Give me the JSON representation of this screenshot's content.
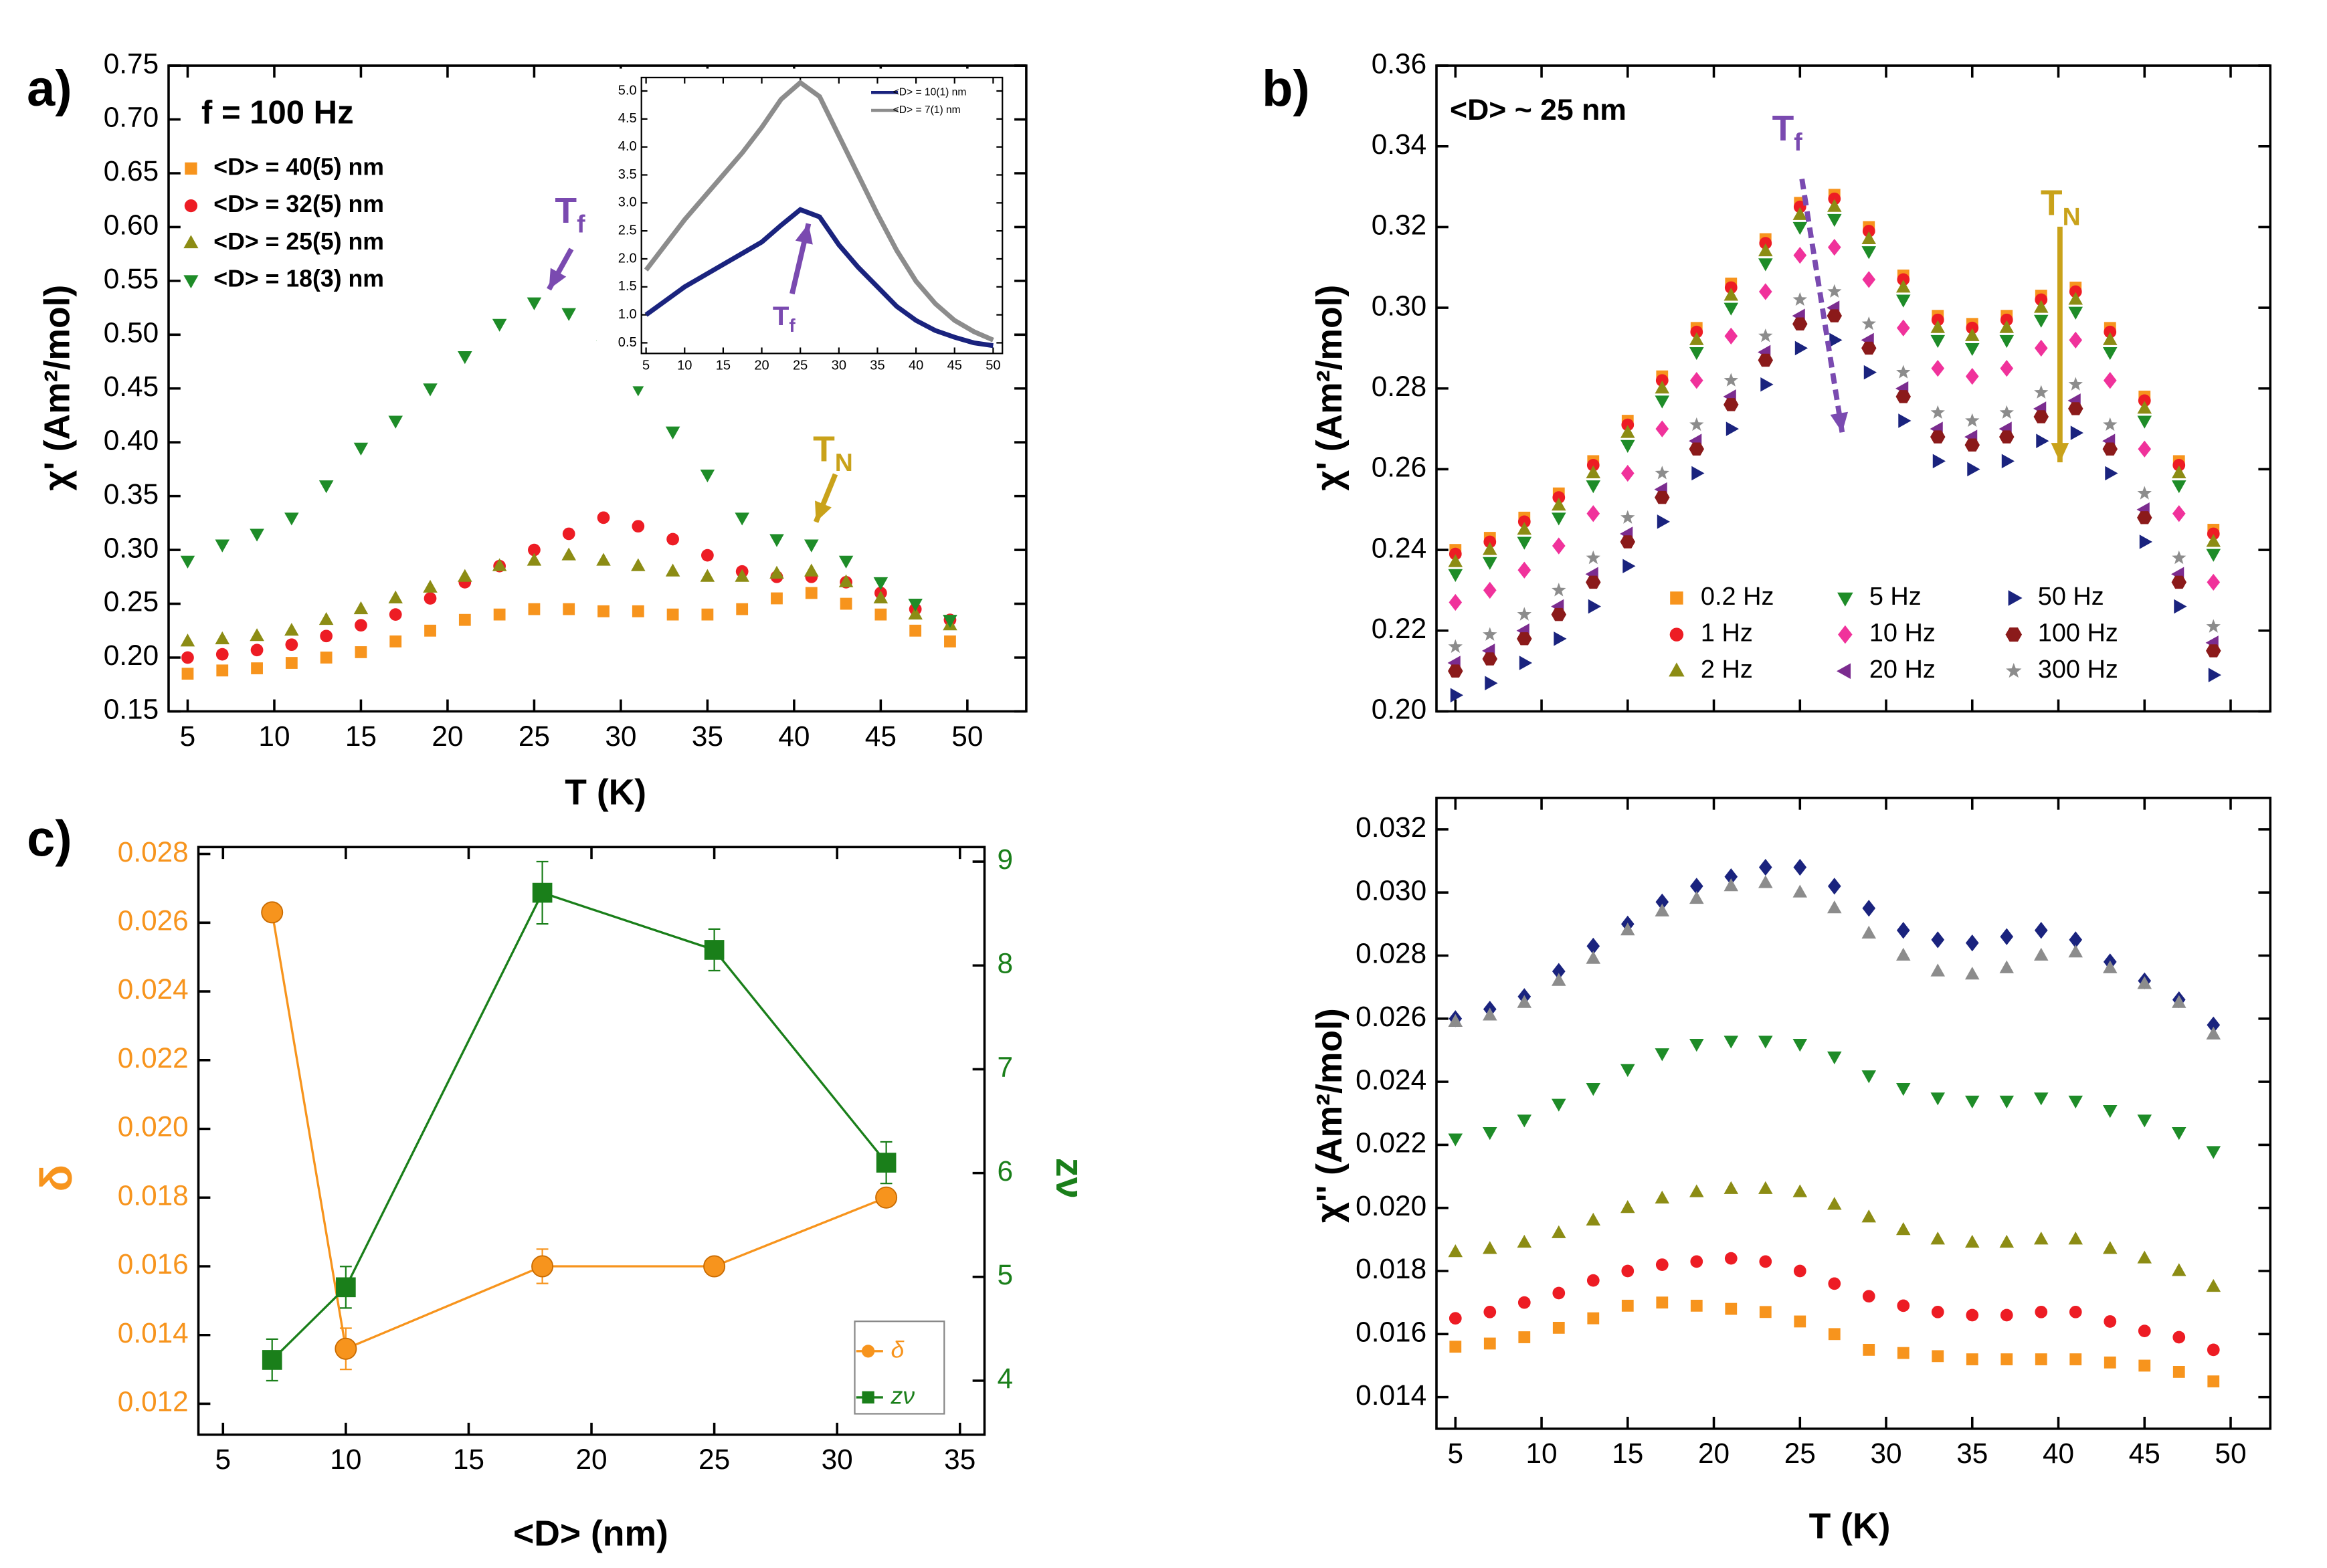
{
  "chart_data": [
    {
      "type": "scatter",
      "panel": "a)",
      "xlabel": "T (K)",
      "ylabel": "χ' (Am²/mol)",
      "xlim": [
        3.9,
        53.4
      ],
      "ylim": [
        0.15,
        0.75
      ],
      "xticks": [
        5,
        10,
        15,
        20,
        25,
        30,
        35,
        40,
        45,
        50
      ],
      "yticks": [
        0.15,
        {
          "value": 0.2,
          "label": "0.20"
        },
        0.25,
        {
          "value": 0.3,
          "label": "0.30"
        },
        0.35,
        {
          "value": 0.4,
          "label": "0.40"
        },
        0.45,
        {
          "value": 0.5,
          "label": "0.50"
        },
        0.55,
        {
          "value": 0.6,
          "label": "0.60"
        },
        0.65,
        {
          "value": 0.7,
          "label": "0.70"
        },
        0.75
      ],
      "annotations": [
        {
          "text": "f = 100 Hz"
        },
        {
          "text": "T",
          "sub": "f"
        },
        {
          "text": "T",
          "sub": "N"
        }
      ],
      "legend": "upper left",
      "x": [
        5,
        7,
        9,
        11,
        13,
        15,
        17,
        19,
        21,
        23,
        25,
        27,
        29,
        31,
        33,
        35,
        37,
        39,
        41,
        43,
        45,
        47,
        49
      ],
      "series": [
        {
          "name": "<D> = 40(5) nm",
          "color": "#f7941d",
          "marker": "square",
          "values": [
            0.185,
            0.188,
            0.19,
            0.195,
            0.2,
            0.205,
            0.215,
            0.225,
            0.235,
            0.24,
            0.245,
            0.245,
            0.243,
            0.243,
            0.24,
            0.24,
            0.245,
            0.255,
            0.26,
            0.25,
            0.24,
            0.225,
            0.215
          ]
        },
        {
          "name": "<D> = 32(5) nm",
          "color": "#ed1c24",
          "marker": "circle",
          "values": [
            0.2,
            0.203,
            0.207,
            0.212,
            0.22,
            0.23,
            0.24,
            0.255,
            0.27,
            0.285,
            0.3,
            0.315,
            0.33,
            0.322,
            0.31,
            0.295,
            0.28,
            0.275,
            0.275,
            0.27,
            0.26,
            0.245,
            0.235
          ]
        },
        {
          "name": "<D> = 25(5) nm",
          "color": "#8c8c14",
          "marker": "tri-up",
          "values": [
            0.215,
            0.217,
            0.22,
            0.225,
            0.235,
            0.245,
            0.255,
            0.265,
            0.275,
            0.285,
            0.29,
            0.295,
            0.29,
            0.285,
            0.28,
            0.275,
            0.275,
            0.278,
            0.28,
            0.27,
            0.255,
            0.24,
            0.23
          ]
        },
        {
          "name": "<D> = 18(3) nm",
          "color": "#1e8c28",
          "marker": "tri-down",
          "values": [
            0.29,
            0.305,
            0.315,
            0.33,
            0.36,
            0.395,
            0.42,
            0.45,
            0.48,
            0.51,
            0.53,
            0.52,
            0.49,
            0.45,
            0.41,
            0.37,
            0.33,
            0.31,
            0.305,
            0.29,
            0.27,
            0.25,
            0.235
          ]
        }
      ]
    },
    {
      "type": "line",
      "xlim": [
        4.4,
        51.2
      ],
      "ylim": [
        0.31,
        5.24
      ],
      "xticks": [
        5,
        10,
        15,
        20,
        25,
        30,
        35,
        40,
        45,
        50
      ],
      "yticks": [
        0.5,
        {
          "value": 1,
          "label": "1.0"
        },
        1.5,
        {
          "value": 2,
          "label": "2.0"
        },
        2.5,
        {
          "value": 3,
          "label": "3.0"
        },
        3.5,
        {
          "value": 4,
          "label": "4.0"
        },
        4.5,
        {
          "value": 5,
          "label": "5.0"
        }
      ],
      "annotations": [
        {
          "text": "T",
          "sub": "f"
        }
      ],
      "legend": "upper right",
      "x": [
        5,
        7.5,
        10,
        12.5,
        15,
        17.5,
        20,
        22.5,
        25,
        27.5,
        30,
        32.5,
        35,
        37.5,
        40,
        42.5,
        45,
        47.5,
        50
      ],
      "series": [
        {
          "name": "<D> = 10(1) nm",
          "color": "#1a237e",
          "values": [
            1.0,
            1.25,
            1.5,
            1.7,
            1.9,
            2.1,
            2.3,
            2.6,
            2.88,
            2.75,
            2.25,
            1.85,
            1.5,
            1.15,
            0.9,
            0.72,
            0.6,
            0.5,
            0.45
          ]
        },
        {
          "name": "<D> = 7(1) nm",
          "color": "#8c8c8c",
          "values": [
            1.8,
            2.25,
            2.7,
            3.1,
            3.5,
            3.9,
            4.35,
            4.85,
            5.15,
            4.9,
            4.2,
            3.5,
            2.8,
            2.15,
            1.6,
            1.2,
            0.9,
            0.7,
            0.55
          ]
        }
      ]
    },
    {
      "type": "scatter",
      "panel": "b)",
      "ylabel": "χ' (Am²/mol)",
      "xlim": [
        3.9,
        52.3
      ],
      "ylim": [
        0.2,
        0.36
      ],
      "xtick_labels": false,
      "xticks": [
        5,
        10,
        15,
        20,
        25,
        30,
        35,
        40,
        45,
        50
      ],
      "yticks": [
        {
          "value": 0.2,
          "label": "0.20"
        },
        0.22,
        0.24,
        0.26,
        0.28,
        {
          "value": 0.3,
          "label": "0.30"
        },
        0.32,
        0.34,
        0.36
      ],
      "annotations": [
        {
          "text": "<D> ~ 25 nm"
        },
        {
          "text": "T",
          "sub": "f"
        },
        {
          "text": "T",
          "sub": "N"
        }
      ],
      "legend": "lower right",
      "x": [
        5,
        7,
        9,
        11,
        13,
        15,
        17,
        19,
        21,
        23,
        25,
        27,
        29,
        31,
        33,
        35,
        37,
        39,
        41,
        43,
        45,
        47,
        49
      ],
      "series": [
        {
          "name": "0.2 Hz",
          "color": "#f7941d",
          "marker": "square",
          "values": [
            0.24,
            0.243,
            0.248,
            0.254,
            0.262,
            0.272,
            0.283,
            0.295,
            0.306,
            0.317,
            0.326,
            0.328,
            0.32,
            0.308,
            0.298,
            0.296,
            0.298,
            0.303,
            0.305,
            0.295,
            0.278,
            0.262,
            0.245
          ]
        },
        {
          "name": "1 Hz",
          "color": "#ed1c24",
          "marker": "circle",
          "values": [
            0.239,
            0.242,
            0.247,
            0.253,
            0.261,
            0.271,
            0.282,
            0.294,
            0.305,
            0.316,
            0.325,
            0.327,
            0.319,
            0.307,
            0.297,
            0.295,
            0.297,
            0.302,
            0.304,
            0.294,
            0.277,
            0.261,
            0.244
          ]
        },
        {
          "name": "2 Hz",
          "color": "#8c8c14",
          "marker": "tri-up",
          "values": [
            0.237,
            0.24,
            0.245,
            0.251,
            0.259,
            0.269,
            0.28,
            0.292,
            0.303,
            0.314,
            0.323,
            0.325,
            0.317,
            0.305,
            0.295,
            0.293,
            0.295,
            0.3,
            0.302,
            0.292,
            0.275,
            0.259,
            0.242
          ]
        },
        {
          "name": "5 Hz",
          "color": "#1e8c28",
          "marker": "tri-down",
          "values": [
            0.234,
            0.237,
            0.242,
            0.248,
            0.256,
            0.266,
            0.277,
            0.289,
            0.3,
            0.311,
            0.32,
            0.322,
            0.314,
            0.302,
            0.292,
            0.29,
            0.292,
            0.297,
            0.299,
            0.289,
            0.272,
            0.256,
            0.239
          ]
        },
        {
          "name": "10 Hz",
          "color": "#f0329b",
          "marker": "diamond",
          "values": [
            0.227,
            0.23,
            0.235,
            0.241,
            0.249,
            0.259,
            0.27,
            0.282,
            0.293,
            0.304,
            0.313,
            0.315,
            0.307,
            0.295,
            0.285,
            0.283,
            0.285,
            0.29,
            0.292,
            0.282,
            0.265,
            0.249,
            0.232
          ]
        },
        {
          "name": "20 Hz",
          "color": "#7b2c8f",
          "marker": "tri-left",
          "values": [
            0.212,
            0.215,
            0.22,
            0.226,
            0.234,
            0.244,
            0.255,
            0.267,
            0.278,
            0.289,
            0.298,
            0.3,
            0.292,
            0.28,
            0.27,
            0.268,
            0.27,
            0.275,
            0.277,
            0.267,
            0.25,
            0.234,
            0.217
          ]
        },
        {
          "name": "50 Hz",
          "color": "#1a237e",
          "marker": "tri-right",
          "values": [
            0.204,
            0.207,
            0.212,
            0.218,
            0.226,
            0.236,
            0.247,
            0.259,
            0.27,
            0.281,
            0.29,
            0.292,
            0.284,
            0.272,
            0.262,
            0.26,
            0.262,
            0.267,
            0.269,
            0.259,
            0.242,
            0.226,
            0.209
          ]
        },
        {
          "name": "100 Hz",
          "color": "#8b1a1a",
          "marker": "hexagon",
          "values": [
            0.21,
            0.213,
            0.218,
            0.224,
            0.232,
            0.242,
            0.253,
            0.265,
            0.276,
            0.287,
            0.296,
            0.298,
            0.29,
            0.278,
            0.268,
            0.266,
            0.268,
            0.273,
            0.275,
            0.265,
            0.248,
            0.232,
            0.215
          ]
        },
        {
          "name": "300 Hz",
          "color": "#8c8c8c",
          "marker": "star",
          "values": [
            0.216,
            0.219,
            0.224,
            0.23,
            0.238,
            0.248,
            0.259,
            0.271,
            0.282,
            0.293,
            0.302,
            0.304,
            0.296,
            0.284,
            0.274,
            0.272,
            0.274,
            0.279,
            0.281,
            0.271,
            0.254,
            0.238,
            0.221
          ]
        }
      ]
    },
    {
      "type": "scatter",
      "xlabel": "T (K)",
      "ylabel": "χ'' (Am²/mol)",
      "xlim": [
        3.9,
        52.3
      ],
      "ylim": [
        0.013,
        0.033
      ],
      "xticks": [
        5,
        10,
        15,
        20,
        25,
        30,
        35,
        40,
        45,
        50
      ],
      "yticks": [
        0.014,
        0.016,
        0.018,
        {
          "value": 0.02,
          "label": "0.020"
        },
        0.022,
        0.024,
        0.026,
        0.028,
        {
          "value": 0.03,
          "label": "0.030"
        },
        0.032
      ],
      "x": [
        5,
        7,
        9,
        11,
        13,
        15,
        17,
        19,
        21,
        23,
        25,
        27,
        29,
        31,
        33,
        35,
        37,
        39,
        41,
        43,
        45,
        47,
        49
      ],
      "series": [
        {
          "color": "#1a237e",
          "marker": "diamond",
          "values": [
            0.026,
            0.0263,
            0.0267,
            0.0275,
            0.0283,
            0.029,
            0.0297,
            0.0302,
            0.0305,
            0.0308,
            0.0308,
            0.0302,
            0.0295,
            0.0288,
            0.0285,
            0.0284,
            0.0286,
            0.0288,
            0.0285,
            0.0278,
            0.0272,
            0.0266,
            0.0258
          ]
        },
        {
          "color": "#8c8c8c",
          "marker": "tri-up",
          "values": [
            0.0259,
            0.0261,
            0.0265,
            0.0272,
            0.0279,
            0.0288,
            0.0294,
            0.0298,
            0.0302,
            0.0303,
            0.03,
            0.0295,
            0.0287,
            0.028,
            0.0275,
            0.0274,
            0.0276,
            0.028,
            0.0281,
            0.0276,
            0.0271,
            0.0265,
            0.0255
          ]
        },
        {
          "color": "#1e8c28",
          "marker": "tri-down",
          "values": [
            0.0222,
            0.0224,
            0.0228,
            0.0233,
            0.0238,
            0.0244,
            0.0249,
            0.0252,
            0.0253,
            0.0253,
            0.0252,
            0.0248,
            0.0242,
            0.0238,
            0.0235,
            0.0234,
            0.0234,
            0.0235,
            0.0234,
            0.0231,
            0.0228,
            0.0224,
            0.0218
          ]
        },
        {
          "color": "#8c8c14",
          "marker": "tri-up",
          "values": [
            0.0186,
            0.0187,
            0.0189,
            0.0192,
            0.0196,
            0.02,
            0.0203,
            0.0205,
            0.0206,
            0.0206,
            0.0205,
            0.0201,
            0.0197,
            0.0193,
            0.019,
            0.0189,
            0.0189,
            0.019,
            0.019,
            0.0187,
            0.0184,
            0.018,
            0.0175
          ]
        },
        {
          "color": "#ed1c24",
          "marker": "circle",
          "values": [
            0.0165,
            0.0167,
            0.017,
            0.0173,
            0.0177,
            0.018,
            0.0182,
            0.0183,
            0.0184,
            0.0183,
            0.018,
            0.0176,
            0.0172,
            0.0169,
            0.0167,
            0.0166,
            0.0166,
            0.0167,
            0.0167,
            0.0164,
            0.0161,
            0.0159,
            0.0155
          ]
        },
        {
          "color": "#f7941d",
          "marker": "square",
          "values": [
            0.0156,
            0.0157,
            0.0159,
            0.0162,
            0.0165,
            0.0169,
            0.017,
            0.0169,
            0.0168,
            0.0167,
            0.0164,
            0.016,
            0.0155,
            0.0154,
            0.0153,
            0.0152,
            0.0152,
            0.0152,
            0.0152,
            0.0151,
            0.015,
            0.0148,
            0.0145
          ]
        }
      ]
    },
    {
      "type": "line",
      "panel": "c)",
      "xlabel": "<D> (nm)",
      "ylabel": "δ",
      "y2label": "zν",
      "ycolor": "#f7941d",
      "y2color": "#1a7f1a",
      "xlim": [
        4,
        36
      ],
      "ylim": [
        0.0111,
        0.0282
      ],
      "y2lim": [
        3.48,
        9.14
      ],
      "xticks": [
        5,
        10,
        15,
        20,
        25,
        30,
        35
      ],
      "yticks": [
        0.012,
        0.014,
        0.016,
        0.018,
        {
          "value": 0.02,
          "label": "0.020"
        },
        0.022,
        0.024,
        0.026,
        0.028
      ],
      "y2ticks": [
        4,
        5,
        6,
        7,
        8,
        9
      ],
      "legend": "lower right",
      "x": [
        7,
        10,
        18,
        25,
        32
      ],
      "series": [
        {
          "name": "δ",
          "color": "#f7941d",
          "marker": "circle",
          "values": [
            0.0263,
            0.0136,
            0.016,
            0.016,
            0.018
          ],
          "errors": [
            null,
            0.0006,
            0.0005,
            null,
            null
          ]
        },
        {
          "name": "zν",
          "color": "#1a7f1a",
          "marker": "square",
          "axis": "y2",
          "values": [
            4.2,
            4.9,
            8.7,
            8.15,
            6.1
          ],
          "errors": [
            0.2,
            0.2,
            0.3,
            0.2,
            0.2
          ]
        }
      ]
    }
  ]
}
